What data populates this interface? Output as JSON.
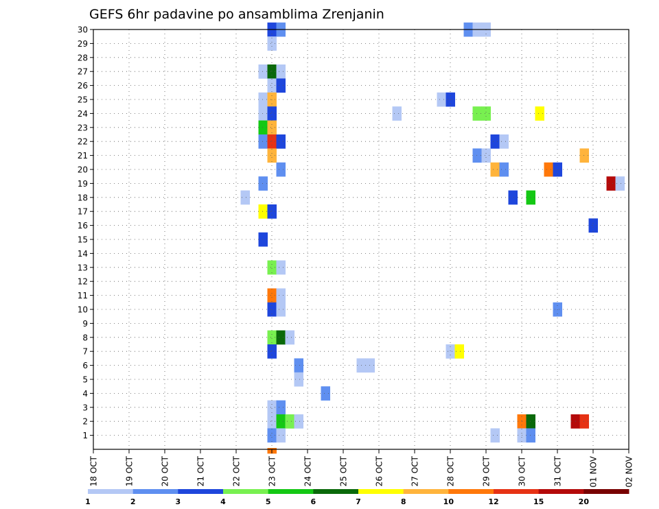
{
  "chart_data": {
    "type": "heatmap",
    "title": "GEFS 6hr padavine po ansamblima Zrenjanin",
    "x_ticks": [
      "18 OCT",
      "19 OCT",
      "20 OCT",
      "21 OCT",
      "22 OCT",
      "23 OCT",
      "24 OCT",
      "25 OCT",
      "26 OCT",
      "27 OCT",
      "28 OCT",
      "29 OCT",
      "30 OCT",
      "31 OCT",
      "01 NOV",
      "02 NOV"
    ],
    "y_ticks": [
      "1",
      "2",
      "3",
      "4",
      "5",
      "6",
      "7",
      "8",
      "9",
      "10",
      "11",
      "12",
      "13",
      "14",
      "15",
      "16",
      "17",
      "18",
      "19",
      "20",
      "21",
      "22",
      "23",
      "24",
      "25",
      "26",
      "27",
      "28",
      "29",
      "30"
    ],
    "xlim": [
      "2018-10-18 00Z",
      "2018-11-02 00Z"
    ],
    "ylim": [
      0,
      30
    ],
    "grid": true,
    "colorbar": {
      "labels": [
        "1",
        "2",
        "3",
        "4",
        "5",
        "6",
        "7",
        "8",
        "10",
        "12",
        "15",
        "20"
      ],
      "colors": [
        "#b4c8f5",
        "#5f8ff0",
        "#1e46dc",
        "#78f050",
        "#14c814",
        "#0a690a",
        "#ffff00",
        "#ffb43c",
        "#ff780a",
        "#e63214",
        "#b40a0a",
        "#780000"
      ]
    },
    "cells": [
      {
        "m": 30,
        "day": 23,
        "hour": 0,
        "level": 3
      },
      {
        "m": 30,
        "day": 23,
        "hour": 6,
        "level": 2
      },
      {
        "m": 30,
        "day": 28,
        "hour": 12,
        "level": 2
      },
      {
        "m": 30,
        "day": 28,
        "hour": 18,
        "level": 1
      },
      {
        "m": 30,
        "day": 29,
        "hour": 0,
        "level": 1
      },
      {
        "m": 29,
        "day": 23,
        "hour": 0,
        "level": 1
      },
      {
        "m": 27,
        "day": 22,
        "hour": 18,
        "level": 1
      },
      {
        "m": 27,
        "day": 23,
        "hour": 0,
        "level": 6
      },
      {
        "m": 27,
        "day": 23,
        "hour": 6,
        "level": 1
      },
      {
        "m": 26,
        "day": 23,
        "hour": 0,
        "level": 1
      },
      {
        "m": 26,
        "day": 23,
        "hour": 6,
        "level": 3
      },
      {
        "m": 25,
        "day": 22,
        "hour": 18,
        "level": 1
      },
      {
        "m": 25,
        "day": 23,
        "hour": 0,
        "level": 8
      },
      {
        "m": 25,
        "day": 27,
        "hour": 18,
        "level": 1
      },
      {
        "m": 25,
        "day": 28,
        "hour": 0,
        "level": 3
      },
      {
        "m": 24,
        "day": 22,
        "hour": 18,
        "level": 1
      },
      {
        "m": 24,
        "day": 23,
        "hour": 0,
        "level": 3
      },
      {
        "m": 24,
        "day": 26,
        "hour": 12,
        "level": 1
      },
      {
        "m": 24,
        "day": 28,
        "hour": 18,
        "level": 4
      },
      {
        "m": 24,
        "day": 29,
        "hour": 0,
        "level": 4
      },
      {
        "m": 24,
        "day": 30,
        "hour": 12,
        "level": 7
      },
      {
        "m": 23,
        "day": 22,
        "hour": 18,
        "level": 5
      },
      {
        "m": 23,
        "day": 23,
        "hour": 0,
        "level": 8
      },
      {
        "m": 22,
        "day": 22,
        "hour": 18,
        "level": 2
      },
      {
        "m": 22,
        "day": 23,
        "hour": 0,
        "level": 10
      },
      {
        "m": 22,
        "day": 23,
        "hour": 6,
        "level": 3
      },
      {
        "m": 22,
        "day": 29,
        "hour": 6,
        "level": 3
      },
      {
        "m": 22,
        "day": 29,
        "hour": 12,
        "level": 1
      },
      {
        "m": 21,
        "day": 23,
        "hour": 0,
        "level": 8
      },
      {
        "m": 21,
        "day": 28,
        "hour": 18,
        "level": 2
      },
      {
        "m": 21,
        "day": 29,
        "hour": 0,
        "level": 1
      },
      {
        "m": 21,
        "day": 31,
        "hour": 18,
        "level": 8
      },
      {
        "m": 20,
        "day": 23,
        "hour": 6,
        "level": 2
      },
      {
        "m": 20,
        "day": 29,
        "hour": 6,
        "level": 8
      },
      {
        "m": 20,
        "day": 29,
        "hour": 12,
        "level": 2
      },
      {
        "m": 20,
        "day": 30,
        "hour": 18,
        "level": 9
      },
      {
        "m": 20,
        "day": 31,
        "hour": 0,
        "level": 3
      },
      {
        "m": 19,
        "day": 22,
        "hour": 18,
        "level": 2
      },
      {
        "m": 19,
        "day": 32,
        "hour": 12,
        "level": 11
      },
      {
        "m": 19,
        "day": 32,
        "hour": 18,
        "level": 1
      },
      {
        "m": 18,
        "day": 22,
        "hour": 6,
        "level": 1
      },
      {
        "m": 18,
        "day": 29,
        "hour": 18,
        "level": 3
      },
      {
        "m": 18,
        "day": 30,
        "hour": 6,
        "level": 5
      },
      {
        "m": 17,
        "day": 22,
        "hour": 18,
        "level": 7
      },
      {
        "m": 17,
        "day": 23,
        "hour": 0,
        "level": 3
      },
      {
        "m": 16,
        "day": 32,
        "hour": 0,
        "level": 3
      },
      {
        "m": 15,
        "day": 22,
        "hour": 18,
        "level": 3
      },
      {
        "m": 13,
        "day": 23,
        "hour": 0,
        "level": 4
      },
      {
        "m": 13,
        "day": 23,
        "hour": 6,
        "level": 1
      },
      {
        "m": 11,
        "day": 23,
        "hour": 0,
        "level": 9
      },
      {
        "m": 11,
        "day": 23,
        "hour": 6,
        "level": 1
      },
      {
        "m": 10,
        "day": 31,
        "hour": 0,
        "level": 2
      },
      {
        "m": 10,
        "day": 23,
        "hour": 0,
        "level": 3
      },
      {
        "m": 10,
        "day": 23,
        "hour": 6,
        "level": 1
      },
      {
        "m": 8,
        "day": 23,
        "hour": 0,
        "level": 4
      },
      {
        "m": 8,
        "day": 23,
        "hour": 6,
        "level": 6
      },
      {
        "m": 8,
        "day": 23,
        "hour": 12,
        "level": 1
      },
      {
        "m": 7,
        "day": 23,
        "hour": 0,
        "level": 3
      },
      {
        "m": 7,
        "day": 28,
        "hour": 0,
        "level": 1
      },
      {
        "m": 7,
        "day": 28,
        "hour": 6,
        "level": 7
      },
      {
        "m": 6,
        "day": 23,
        "hour": 18,
        "level": 2
      },
      {
        "m": 6,
        "day": 25,
        "hour": 12,
        "level": 1
      },
      {
        "m": 6,
        "day": 25,
        "hour": 18,
        "level": 1
      },
      {
        "m": 5,
        "day": 23,
        "hour": 18,
        "level": 1
      },
      {
        "m": 4,
        "day": 24,
        "hour": 12,
        "level": 2
      },
      {
        "m": 3,
        "day": 23,
        "hour": 0,
        "level": 1
      },
      {
        "m": 3,
        "day": 23,
        "hour": 6,
        "level": 2
      },
      {
        "m": 2,
        "day": 23,
        "hour": 0,
        "level": 1
      },
      {
        "m": 2,
        "day": 23,
        "hour": 6,
        "level": 5
      },
      {
        "m": 2,
        "day": 23,
        "hour": 12,
        "level": 4
      },
      {
        "m": 2,
        "day": 23,
        "hour": 18,
        "level": 1
      },
      {
        "m": 2,
        "day": 30,
        "hour": 0,
        "level": 9
      },
      {
        "m": 2,
        "day": 30,
        "hour": 6,
        "level": 6
      },
      {
        "m": 2,
        "day": 31,
        "hour": 12,
        "level": 11
      },
      {
        "m": 2,
        "day": 31,
        "hour": 18,
        "level": 10
      },
      {
        "m": 1,
        "day": 23,
        "hour": 0,
        "level": 2
      },
      {
        "m": 1,
        "day": 23,
        "hour": 6,
        "level": 1
      },
      {
        "m": 1,
        "day": 29,
        "hour": 6,
        "level": 1
      },
      {
        "m": 1,
        "day": 30,
        "hour": 0,
        "level": 1
      },
      {
        "m": 1,
        "day": 30,
        "hour": 6,
        "level": 2
      },
      {
        "m": 0,
        "day": 23,
        "hour": 0,
        "level": 9
      }
    ]
  }
}
